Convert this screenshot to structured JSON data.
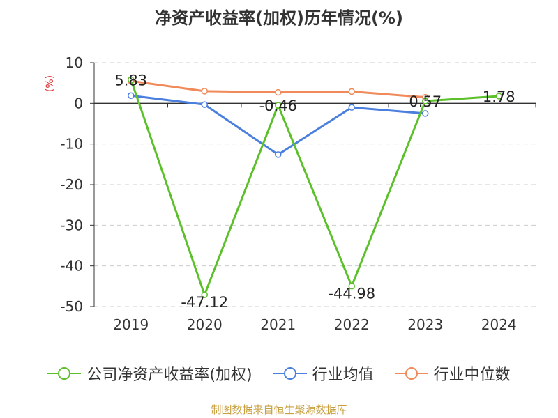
{
  "title": "净资产收益率(加权)历年情况(%)",
  "unit_label": "(%)",
  "source": "制图数据来自恒生聚源数据库",
  "chart_data": {
    "type": "line",
    "categories": [
      "2019",
      "2020",
      "2021",
      "2022",
      "2023",
      "2024"
    ],
    "ylim": [
      -50,
      10
    ],
    "yticks": [
      10,
      0,
      -10,
      -20,
      -30,
      -40,
      -50
    ],
    "grid": true,
    "legend_position": "bottom",
    "series": [
      {
        "name": "公司净资产收益率(加权)",
        "color": "#5bc02a",
        "values": [
          5.83,
          -47.12,
          -0.46,
          -44.98,
          0.57,
          1.78
        ],
        "labels": [
          "5.83",
          "-47.12",
          "-0.46",
          "-44.98",
          "0.57",
          "1.78"
        ]
      },
      {
        "name": "行业均值",
        "color": "#4a7fde",
        "values": [
          1.9,
          -0.3,
          -12.6,
          -1.0,
          -2.5,
          null
        ]
      },
      {
        "name": "行业中位数",
        "color": "#f08a5a",
        "values": [
          5.5,
          3.0,
          2.7,
          2.9,
          1.5,
          null
        ]
      }
    ]
  }
}
